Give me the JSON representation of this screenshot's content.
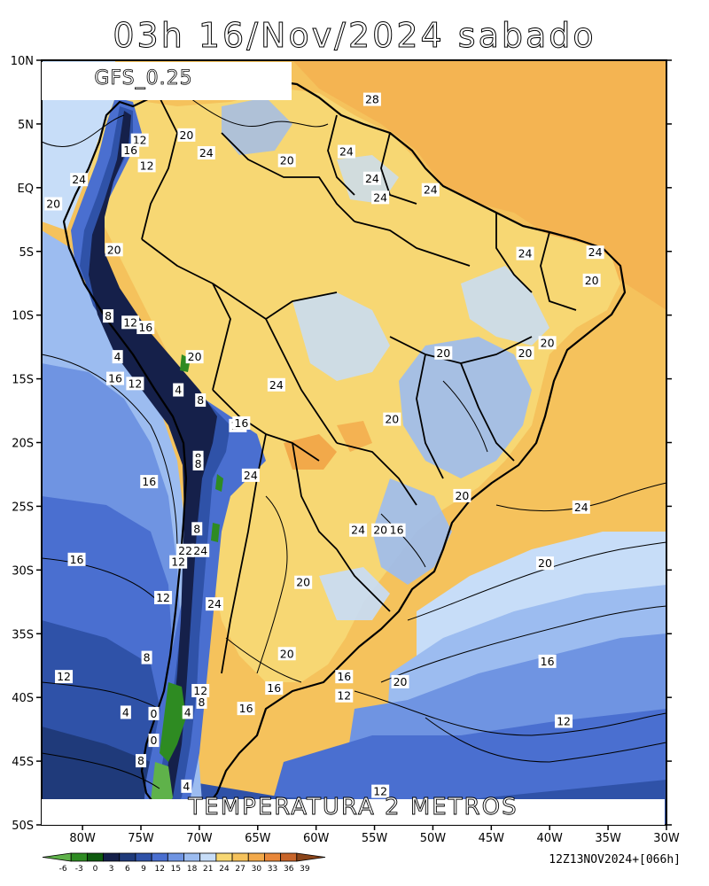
{
  "title": "03h 16/Nov/2024 sabado",
  "model": "GFS_0.25",
  "variable": "TEMPERATURA 2 METROS",
  "run": "12Z13NOV2024+[066h]",
  "lat_ticks": [
    "10N",
    "5N",
    "EQ",
    "5S",
    "10S",
    "15S",
    "20S",
    "25S",
    "30S",
    "35S",
    "40S",
    "45S",
    "50S"
  ],
  "lon_ticks": [
    "80W",
    "75W",
    "70W",
    "65W",
    "60W",
    "55W",
    "50W",
    "45W",
    "40W",
    "35W",
    "30W"
  ],
  "colorbar": {
    "labels": [
      "-6",
      "-3",
      "0",
      "3",
      "6",
      "9",
      "12",
      "15",
      "18",
      "21",
      "24",
      "27",
      "30",
      "33",
      "36",
      "39"
    ],
    "colors": [
      "#5fb24a",
      "#2e8b22",
      "#0f5b0f",
      "#15204a",
      "#1f3a7a",
      "#2f52a8",
      "#4a6fd0",
      "#6f94e2",
      "#9cbcf0",
      "#c7ddf8",
      "#f7d773",
      "#f5c25c",
      "#f2a94a",
      "#e8873a",
      "#c8652a",
      "#8a4419"
    ]
  },
  "contour_labels": [
    {
      "t": "28",
      "lon": -55.2,
      "lat": 6.9
    },
    {
      "t": "20",
      "lon": -71.1,
      "lat": 4.1
    },
    {
      "t": "12",
      "lon": -75.1,
      "lat": 3.7
    },
    {
      "t": "16",
      "lon": -75.9,
      "lat": 2.9
    },
    {
      "t": "24",
      "lon": -69.4,
      "lat": 2.7
    },
    {
      "t": "20",
      "lon": -62.5,
      "lat": 2.1
    },
    {
      "t": "24",
      "lon": -57.4,
      "lat": 2.8
    },
    {
      "t": "12",
      "lon": -74.5,
      "lat": 1.7
    },
    {
      "t": "24",
      "lon": -80.3,
      "lat": 0.6
    },
    {
      "t": "24",
      "lon": -55.2,
      "lat": 0.7
    },
    {
      "t": "24",
      "lon": -50.2,
      "lat": -0.2
    },
    {
      "t": "24",
      "lon": -54.5,
      "lat": -0.8
    },
    {
      "t": "20",
      "lon": -82.5,
      "lat": -1.3
    },
    {
      "t": "20",
      "lon": -77.3,
      "lat": -4.9
    },
    {
      "t": "24",
      "lon": -42.1,
      "lat": -5.2
    },
    {
      "t": "24",
      "lon": -36.1,
      "lat": -5.1
    },
    {
      "t": "20",
      "lon": -36.4,
      "lat": -7.3
    },
    {
      "t": "8",
      "lon": -77.8,
      "lat": -10.1
    },
    {
      "t": "12",
      "lon": -75.9,
      "lat": -10.6
    },
    {
      "t": "16",
      "lon": -74.6,
      "lat": -11.0
    },
    {
      "t": "20",
      "lon": -70.4,
      "lat": -13.3
    },
    {
      "t": "20",
      "lon": -49.1,
      "lat": -13.0
    },
    {
      "t": "20",
      "lon": -42.1,
      "lat": -13.0
    },
    {
      "t": "20",
      "lon": -40.2,
      "lat": -12.2
    },
    {
      "t": "4",
      "lon": -77.0,
      "lat": -13.3
    },
    {
      "t": "16",
      "lon": -77.2,
      "lat": -15.0
    },
    {
      "t": "12",
      "lon": -75.5,
      "lat": -15.4
    },
    {
      "t": "4",
      "lon": -71.8,
      "lat": -15.9
    },
    {
      "t": "24",
      "lon": -63.4,
      "lat": -15.5
    },
    {
      "t": "8",
      "lon": -69.9,
      "lat": -16.7
    },
    {
      "t": "16",
      "lon": -66.7,
      "lat": -18.7
    },
    {
      "t": "16",
      "lon": -66.4,
      "lat": -18.5
    },
    {
      "t": "20",
      "lon": -53.5,
      "lat": -18.2
    },
    {
      "t": "8",
      "lon": -70.1,
      "lat": -21.2
    },
    {
      "t": "8",
      "lon": -70.1,
      "lat": -21.7
    },
    {
      "t": "24",
      "lon": -65.6,
      "lat": -22.6
    },
    {
      "t": "16",
      "lon": -74.3,
      "lat": -23.1
    },
    {
      "t": "20",
      "lon": -47.5,
      "lat": -24.2
    },
    {
      "t": "24",
      "lon": -37.3,
      "lat": -25.1
    },
    {
      "t": "8",
      "lon": -70.2,
      "lat": -26.8
    },
    {
      "t": "24",
      "lon": -56.4,
      "lat": -26.9
    },
    {
      "t": "20",
      "lon": -54.5,
      "lat": -26.9
    },
    {
      "t": "16",
      "lon": -53.1,
      "lat": -26.9
    },
    {
      "t": "22",
      "lon": -71.2,
      "lat": -28.5
    },
    {
      "t": "24",
      "lon": -69.9,
      "lat": -28.5
    },
    {
      "t": "12",
      "lon": -71.8,
      "lat": -29.4
    },
    {
      "t": "16",
      "lon": -80.5,
      "lat": -29.2
    },
    {
      "t": "20",
      "lon": -40.4,
      "lat": -29.5
    },
    {
      "t": "20",
      "lon": -61.1,
      "lat": -31.0
    },
    {
      "t": "12",
      "lon": -73.1,
      "lat": -32.2
    },
    {
      "t": "24",
      "lon": -68.7,
      "lat": -32.7
    },
    {
      "t": "8",
      "lon": -74.5,
      "lat": -36.9
    },
    {
      "t": "20",
      "lon": -62.5,
      "lat": -36.6
    },
    {
      "t": "16",
      "lon": -40.2,
      "lat": -37.2
    },
    {
      "t": "12",
      "lon": -81.6,
      "lat": -38.4
    },
    {
      "t": "16",
      "lon": -57.6,
      "lat": -38.4
    },
    {
      "t": "20",
      "lon": -52.8,
      "lat": -38.8
    },
    {
      "t": "12",
      "lon": -69.9,
      "lat": -39.5
    },
    {
      "t": "16",
      "lon": -63.6,
      "lat": -39.3
    },
    {
      "t": "12",
      "lon": -57.6,
      "lat": -39.9
    },
    {
      "t": "8",
      "lon": -69.8,
      "lat": -40.4
    },
    {
      "t": "4",
      "lon": -76.3,
      "lat": -41.2
    },
    {
      "t": "0",
      "lon": -73.9,
      "lat": -41.3
    },
    {
      "t": "4",
      "lon": -71.0,
      "lat": -41.2
    },
    {
      "t": "16",
      "lon": -66.0,
      "lat": -40.9
    },
    {
      "t": "12",
      "lon": -38.8,
      "lat": -41.9
    },
    {
      "t": "0",
      "lon": -73.9,
      "lat": -43.4
    },
    {
      "t": "8",
      "lon": -75.0,
      "lat": -45.0
    },
    {
      "t": "4",
      "lon": -71.1,
      "lat": -47.0
    },
    {
      "t": "12",
      "lon": -54.5,
      "lat": -47.4
    }
  ]
}
